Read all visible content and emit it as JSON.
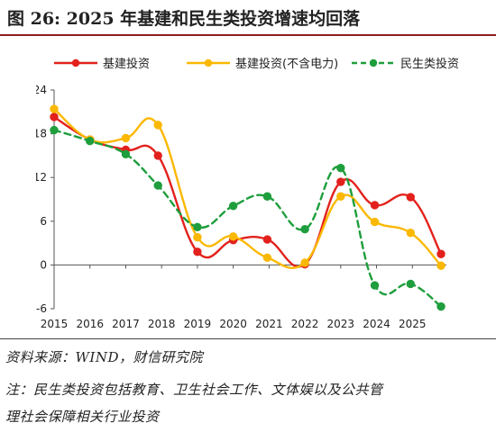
{
  "figure": {
    "title": "图 26:  2025 年基建和民生类投资增速均回落"
  },
  "chart_data": {
    "type": "line",
    "categories": [
      "2015",
      "2016",
      "2017",
      "2018",
      "2019",
      "2020",
      "2021",
      "2022",
      "2023",
      "2024",
      "2025"
    ],
    "x_ticks": [
      "2015",
      "2016",
      "2017",
      "2018",
      "2019",
      "2020",
      "2021",
      "2022",
      "2023",
      "2024",
      "2025"
    ],
    "y_ticks": [
      -6,
      0,
      6,
      12,
      18,
      24
    ],
    "ylim": [
      -6,
      24
    ],
    "grid": false,
    "legend_position": "top",
    "series": [
      {
        "name": "基建投资",
        "color": "#e3211c",
        "style": "solid",
        "points": [
          {
            "x": 2015.0,
            "y": 20.3
          },
          {
            "x": 2016.0,
            "y": 17.2
          },
          {
            "x": 2017.0,
            "y": 15.8
          },
          {
            "x": 2017.9,
            "y": 15.0
          },
          {
            "x": 2019.0,
            "y": 1.8
          },
          {
            "x": 2020.0,
            "y": 3.4
          },
          {
            "x": 2020.95,
            "y": 3.5
          },
          {
            "x": 2022.0,
            "y": 0.1
          },
          {
            "x": 2023.0,
            "y": 11.4
          },
          {
            "x": 2023.95,
            "y": 8.2
          },
          {
            "x": 2024.95,
            "y": 9.3
          },
          {
            "x": 2025.8,
            "y": 1.5
          }
        ]
      },
      {
        "name": "基建投资(不含电力)",
        "color": "#fbb800",
        "style": "solid",
        "points": [
          {
            "x": 2015.0,
            "y": 21.4
          },
          {
            "x": 2016.0,
            "y": 17.2
          },
          {
            "x": 2017.0,
            "y": 17.4
          },
          {
            "x": 2017.9,
            "y": 19.2
          },
          {
            "x": 2019.0,
            "y": 3.8
          },
          {
            "x": 2020.0,
            "y": 3.9
          },
          {
            "x": 2020.95,
            "y": 1.0
          },
          {
            "x": 2022.0,
            "y": 0.3
          },
          {
            "x": 2023.0,
            "y": 9.4
          },
          {
            "x": 2023.95,
            "y": 5.9
          },
          {
            "x": 2024.95,
            "y": 4.4
          },
          {
            "x": 2025.8,
            "y": -0.1
          }
        ]
      },
      {
        "name": "民生类投资",
        "color": "#1e9e3c",
        "style": "dashed",
        "points": [
          {
            "x": 2015.0,
            "y": 18.5
          },
          {
            "x": 2016.0,
            "y": 17.0
          },
          {
            "x": 2017.0,
            "y": 15.2
          },
          {
            "x": 2017.9,
            "y": 10.9
          },
          {
            "x": 2019.0,
            "y": 5.2
          },
          {
            "x": 2020.0,
            "y": 8.1
          },
          {
            "x": 2020.95,
            "y": 9.4
          },
          {
            "x": 2022.0,
            "y": 4.9
          },
          {
            "x": 2023.0,
            "y": 13.3
          },
          {
            "x": 2023.95,
            "y": -2.8
          },
          {
            "x": 2024.95,
            "y": -2.6
          },
          {
            "x": 2025.8,
            "y": -5.7
          }
        ]
      }
    ]
  },
  "notes": {
    "source": "资料来源：WIND，财信研究院",
    "note_line1": "注：民生类投资包括教育、卫生社会工作、文体娱以及公共管",
    "note_line2": "理社会保障相关行业投资"
  }
}
